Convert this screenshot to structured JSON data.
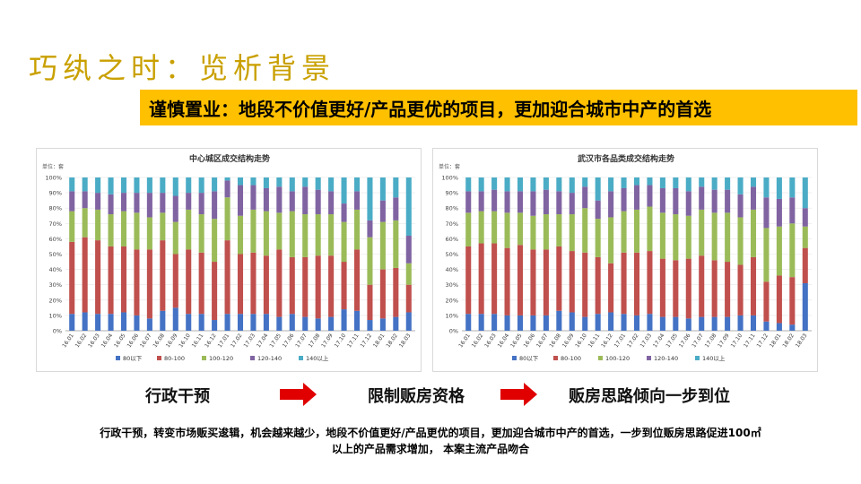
{
  "slide": {
    "title": "巧纨之时：览析背景",
    "banner": "谨慎置业：地段不价值更好/产品更优的项目，更加迎合城市中产的首选",
    "flow": [
      "行政干预",
      "限制贩房资格",
      "贩房思路倾向一步到位"
    ],
    "summary_line1": "行政干预，转变市场贩买逡辑，机会越来越少，地段不价值更好/产品更优的项目，更加迎合城市中产的首选，一步到位贩房思路促进100㎡",
    "summary_line2": "以上的产品需求增加， 本案主流产品吻合"
  },
  "chart_data": [
    {
      "type": "bar",
      "stacked": true,
      "title": "中心城区成交结构走势",
      "unit": "单位：套",
      "ylim": [
        0,
        100
      ],
      "yticks": [
        "0%",
        "10%",
        "20%",
        "30%",
        "40%",
        "50%",
        "60%",
        "70%",
        "80%",
        "90%",
        "100%"
      ],
      "categories": [
        "16.01",
        "16.02",
        "16.03",
        "16.04",
        "16.05",
        "16.06",
        "16.07",
        "16.08",
        "16.09",
        "16.10",
        "16.11",
        "16.12",
        "17.01",
        "17.02",
        "17.03",
        "17.04",
        "17.05",
        "17.06",
        "17.07",
        "17.08",
        "17.09",
        "17.10",
        "17.11",
        "17.12",
        "18.01",
        "18.02",
        "18.03"
      ],
      "series": [
        {
          "name": "80以下",
          "color": "#4472C4",
          "values": [
            11,
            12,
            11,
            11,
            12,
            10,
            8,
            13,
            15,
            11,
            11,
            7,
            11,
            11,
            11,
            11,
            9,
            11,
            9,
            8,
            9,
            14,
            13,
            7,
            8,
            9,
            12
          ]
        },
        {
          "name": "80-100",
          "color": "#C0504D",
          "values": [
            47,
            49,
            48,
            44,
            43,
            43,
            45,
            46,
            35,
            42,
            40,
            38,
            48,
            39,
            40,
            38,
            44,
            37,
            39,
            41,
            40,
            31,
            40,
            23,
            32,
            32,
            18
          ]
        },
        {
          "name": "100-120",
          "color": "#9BBB59",
          "values": [
            20,
            19,
            20,
            21,
            23,
            24,
            21,
            18,
            21,
            26,
            25,
            28,
            28,
            25,
            28,
            29,
            24,
            30,
            28,
            27,
            27,
            26,
            26,
            31,
            31,
            31,
            14
          ]
        },
        {
          "name": "120-140",
          "color": "#8064A2",
          "values": [
            13,
            11,
            11,
            13,
            12,
            13,
            16,
            13,
            17,
            11,
            14,
            18,
            11,
            20,
            16,
            15,
            17,
            13,
            18,
            16,
            15,
            12,
            12,
            11,
            14,
            15,
            18
          ]
        },
        {
          "name": "140以上",
          "color": "#4BACC6",
          "values": [
            9,
            9,
            10,
            11,
            10,
            10,
            10,
            10,
            12,
            10,
            10,
            9,
            2,
            5,
            5,
            7,
            6,
            9,
            6,
            8,
            9,
            17,
            9,
            28,
            15,
            13,
            38
          ]
        }
      ]
    },
    {
      "type": "bar",
      "stacked": true,
      "title": "武汉市各品类成交结构走势",
      "unit": "单位：套",
      "ylim": [
        0,
        100
      ],
      "yticks": [
        "0%",
        "10%",
        "20%",
        "30%",
        "40%",
        "50%",
        "60%",
        "70%",
        "80%",
        "90%",
        "100%"
      ],
      "categories": [
        "16.01",
        "16.02",
        "16.03",
        "16.04",
        "16.05",
        "16.06",
        "16.07",
        "16.08",
        "16.09",
        "16.10",
        "16.11",
        "16.12",
        "17.01",
        "17.02",
        "17.03",
        "17.04",
        "17.05",
        "17.06",
        "17.07",
        "17.08",
        "17.09",
        "17.10",
        "17.11",
        "17.12",
        "18.01",
        "18.02",
        "18.03"
      ],
      "series": [
        {
          "name": "80以下",
          "color": "#4472C4",
          "values": [
            11,
            11,
            11,
            10,
            10,
            10,
            10,
            13,
            12,
            9,
            11,
            12,
            11,
            10,
            11,
            9,
            9,
            8,
            9,
            9,
            9,
            10,
            10,
            6,
            5,
            4,
            31
          ]
        },
        {
          "name": "80-100",
          "color": "#C0504D",
          "values": [
            44,
            46,
            46,
            44,
            46,
            43,
            43,
            42,
            40,
            42,
            37,
            32,
            40,
            41,
            41,
            38,
            37,
            39,
            40,
            37,
            36,
            33,
            38,
            26,
            31,
            31,
            23
          ]
        },
        {
          "name": "100-120",
          "color": "#9BBB59",
          "values": [
            22,
            21,
            21,
            23,
            21,
            22,
            23,
            21,
            24,
            29,
            25,
            30,
            27,
            28,
            29,
            30,
            30,
            28,
            30,
            31,
            32,
            31,
            31,
            35,
            32,
            35,
            14
          ]
        },
        {
          "name": "120-140",
          "color": "#8064A2",
          "values": [
            14,
            13,
            14,
            14,
            14,
            16,
            16,
            15,
            14,
            14,
            12,
            17,
            15,
            16,
            14,
            16,
            17,
            16,
            15,
            15,
            15,
            15,
            15,
            20,
            18,
            17,
            12
          ]
        },
        {
          "name": "140以上",
          "color": "#4BACC6",
          "values": [
            9,
            9,
            8,
            9,
            9,
            9,
            8,
            9,
            10,
            6,
            15,
            9,
            7,
            5,
            5,
            7,
            7,
            9,
            6,
            8,
            8,
            11,
            6,
            13,
            14,
            13,
            20
          ]
        }
      ]
    }
  ]
}
